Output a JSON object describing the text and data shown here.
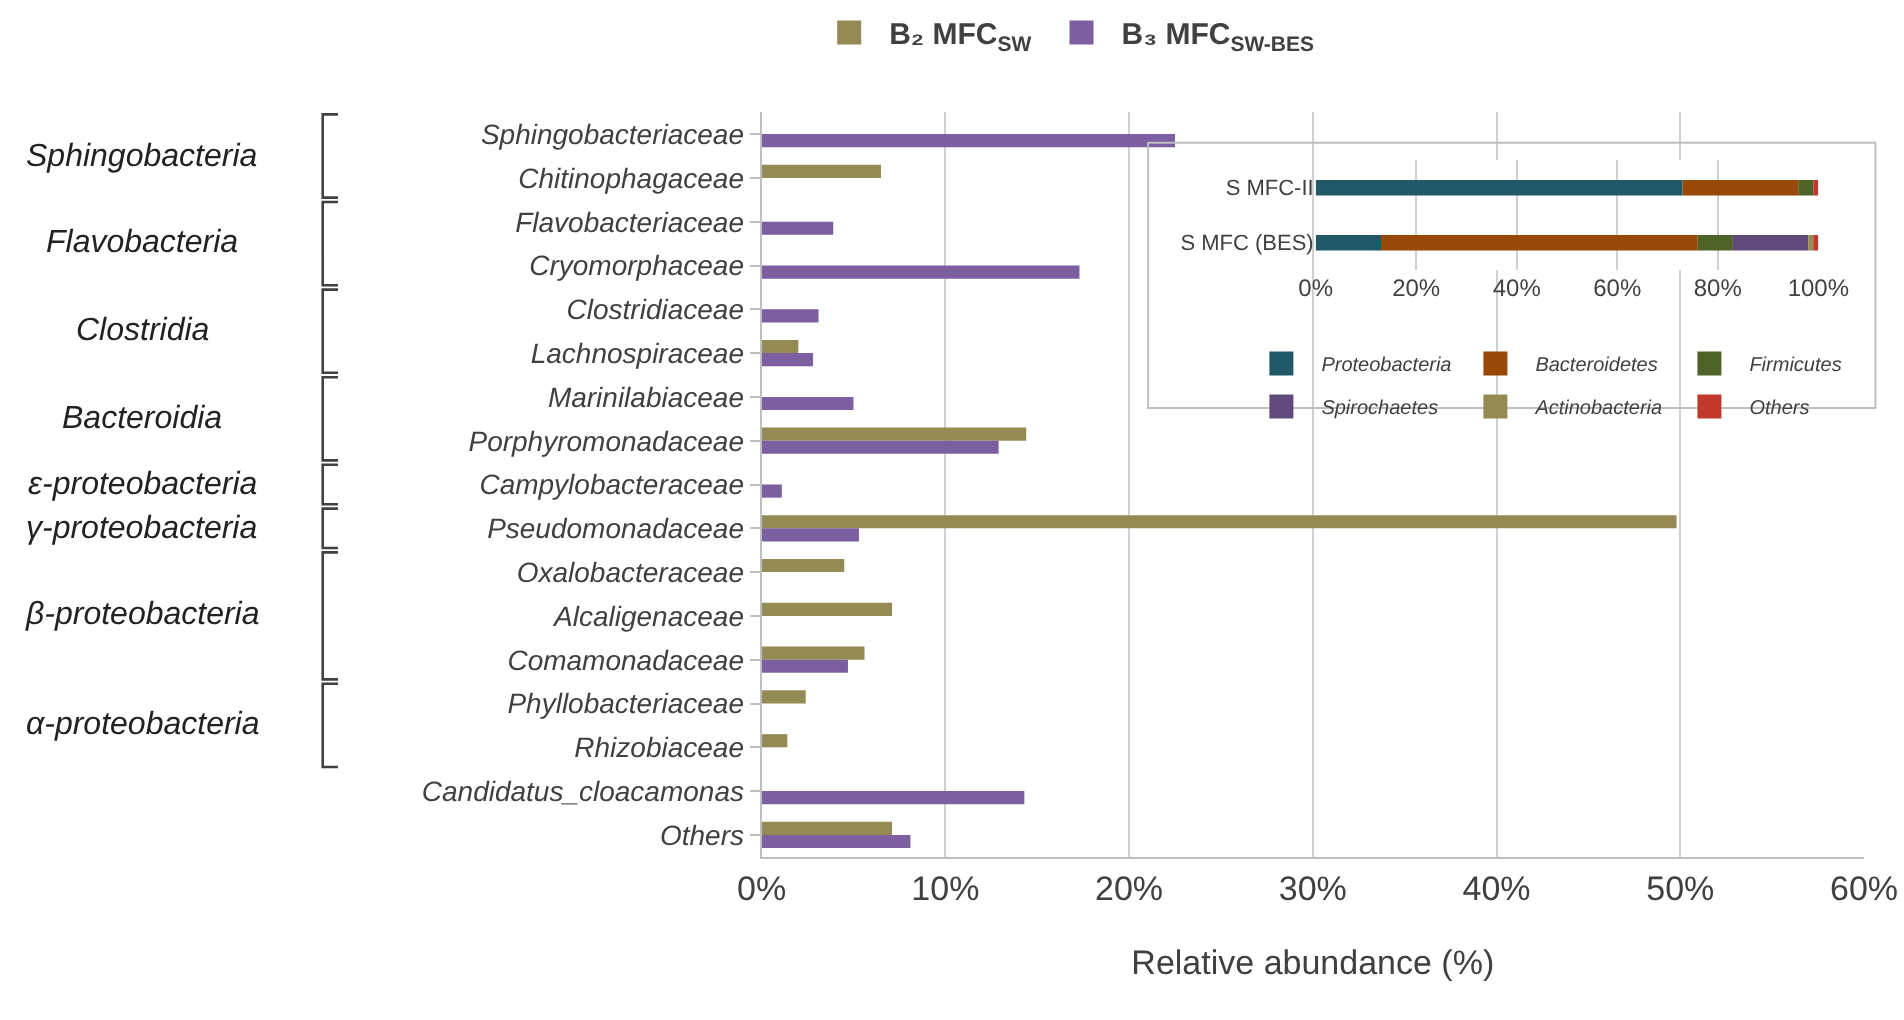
{
  "chart_data": [
    {
      "type": "bar",
      "orientation": "horizontal",
      "xlabel": "Relative abundance (%)",
      "categories": [
        "Sphingobacteriaceae",
        "Chitinophagaceae",
        "Flavobacteriaceae",
        "Cryomorphaceae",
        "Clostridiaceae",
        "Lachnospiraceae",
        "Marinilabiaceae",
        "Porphyromonadaceae",
        "Campylobacteraceae",
        "Pseudomonadaceae",
        "Oxalobacteraceae",
        "Alcaligenaceae",
        "Comamonadaceae",
        "Phyllobacteriaceae",
        "Rhizobiaceae",
        "Candidatus_cloacamonas",
        "Others"
      ],
      "series": [
        {
          "name": "B₂ MFC$_{SW}$",
          "color": "#948a54",
          "values": [
            null,
            6.5,
            null,
            null,
            null,
            2.0,
            null,
            14.4,
            null,
            49.8,
            4.5,
            7.1,
            5.6,
            2.4,
            1.4,
            null,
            7.1
          ]
        },
        {
          "name": "B₃ MFC$_{SW-BES}$",
          "color": "#7b5fa0",
          "values": [
            22.5,
            null,
            3.9,
            17.3,
            3.1,
            2.8,
            5.0,
            12.9,
            1.1,
            5.3,
            null,
            null,
            4.7,
            null,
            null,
            14.3,
            8.1
          ]
        }
      ],
      "xlim": [
        0,
        60
      ],
      "xticks": [
        {
          "value": 0,
          "label": "0%"
        },
        {
          "value": 10,
          "label": "10%"
        },
        {
          "value": 20,
          "label": "20%"
        },
        {
          "value": 30,
          "label": "30%"
        },
        {
          "value": 40,
          "label": "40%"
        },
        {
          "value": 50,
          "label": "50%"
        },
        {
          "value": 60,
          "label": "60%"
        }
      ],
      "grid": "x",
      "legend": "top",
      "annotations": [
        "Sphingobacteria",
        "Flavobacteria",
        "Clostridia",
        "Bacteroidia",
        "ε-proteobacteria",
        "γ-proteobacteria",
        "β-proteobacteria",
        "α-proteobacteria"
      ]
    },
    {
      "type": "bar",
      "orientation": "horizontal",
      "stacked": true,
      "categories": [
        "S MFC-II",
        "S MFC (BES)"
      ],
      "series": [
        {
          "name": "Proteobacteria",
          "color": "#215968",
          "values": [
            73,
            13
          ]
        },
        {
          "name": "Bacteroidetes",
          "color": "#984807",
          "values": [
            23,
            63
          ]
        },
        {
          "name": "Firmicutes",
          "color": "#4f6228",
          "values": [
            3,
            7
          ]
        },
        {
          "name": "Spirochaetes",
          "color": "#604a7b",
          "values": [
            null,
            15
          ]
        },
        {
          "name": "Actinobacteria",
          "color": "#948a54",
          "values": [
            null,
            1
          ]
        },
        {
          "name": "Others",
          "color": "#c0392b",
          "values": [
            1,
            1
          ]
        }
      ],
      "xlim": [
        0,
        100
      ],
      "xticks": [
        {
          "value": 0,
          "label": "0%"
        },
        {
          "value": 20,
          "label": "20%"
        },
        {
          "value": 40,
          "label": "40%"
        },
        {
          "value": 60,
          "label": "60%"
        },
        {
          "value": 80,
          "label": "80%"
        },
        {
          "value": 100,
          "label": "100%"
        }
      ],
      "grid": "x",
      "legend": "bottom"
    }
  ]
}
